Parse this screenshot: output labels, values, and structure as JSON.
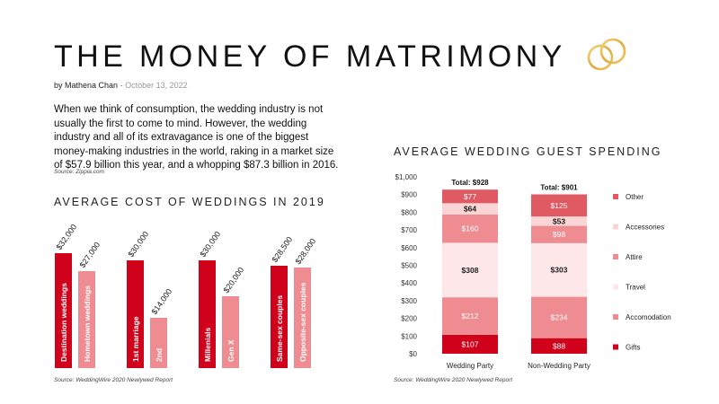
{
  "page": {
    "title": "THE MONEY OF MATRIMONY",
    "author": "by Mathena Chan",
    "separator": "·",
    "date": "October 13, 2022",
    "intro": "When we think of consumption, the wedding industry is not usually the first to come to mind. However, the wedding industry and all of its extravagance is one of the biggest money-making industries in the world, raking in a market size of $57.9 billion this year, and a whopping $87.3 billion in 2016.",
    "intro_source": "Source: Zippia.com",
    "icon": "wedding-rings-icon"
  },
  "colors": {
    "dark_red": "#d0021b",
    "light_red": "#ee8c92",
    "pale_red": "#fbd4d6",
    "very_pale_red": "#fde7e8",
    "gold": "#e8b94a"
  },
  "chart_data": [
    {
      "type": "bar",
      "title": "AVERAGE COST OF WEDDINGS IN 2019",
      "source": "Source: WeddingWire 2020 Newlywed Report",
      "groups": [
        {
          "bars": [
            {
              "label": "Destination weddings",
              "value": 32000,
              "value_label": "$32,000",
              "color": "#d0021b"
            },
            {
              "label": "Hometown weddings",
              "value": 27000,
              "value_label": "$27,000",
              "color": "#ee8c92"
            }
          ]
        },
        {
          "bars": [
            {
              "label": "1st marriage",
              "value": 30000,
              "value_label": "$30,000",
              "color": "#d0021b"
            },
            {
              "label": "2nd",
              "value": 14000,
              "value_label": "$14,000",
              "color": "#ee8c92"
            }
          ]
        },
        {
          "bars": [
            {
              "label": "Millenials",
              "value": 30000,
              "value_label": "$30,000",
              "color": "#d0021b"
            },
            {
              "label": "Gen X",
              "value": 20000,
              "value_label": "$20,000",
              "color": "#ee8c92"
            }
          ]
        },
        {
          "bars": [
            {
              "label": "Same-sex couples",
              "value": 28500,
              "value_label": "$28,500",
              "color": "#d0021b"
            },
            {
              "label": "Opposite-sex couples",
              "value": 28000,
              "value_label": "$28,000",
              "color": "#ee8c92"
            }
          ]
        }
      ],
      "ylim": [
        0,
        40000
      ],
      "grid": false
    },
    {
      "type": "bar",
      "stacked": true,
      "title": "AVERAGE WEDDING GUEST SPENDING",
      "source": "Source: WeddingWire 2020 Newlywed Report",
      "categories": [
        "Wedding Party",
        "Non-Wedding Party"
      ],
      "totals": [
        928,
        901
      ],
      "total_labels": [
        "Total: $928",
        "Total: $901"
      ],
      "series": [
        {
          "name": "Gifts",
          "values": [
            107,
            88
          ],
          "value_labels": [
            "$107",
            "$88"
          ],
          "color": "#d0021b"
        },
        {
          "name": "Accomodation",
          "values": [
            212,
            234
          ],
          "value_labels": [
            "$212",
            "$234"
          ],
          "color": "#ee8c92"
        },
        {
          "name": "Travel",
          "values": [
            308,
            303
          ],
          "value_labels": [
            "$308",
            "$303"
          ],
          "color": "#fde7e8"
        },
        {
          "name": "Attire",
          "values": [
            160,
            98
          ],
          "value_labels": [
            "$160",
            "$98"
          ],
          "color": "#ee8c92"
        },
        {
          "name": "Accessories",
          "values": [
            64,
            53
          ],
          "value_labels": [
            "$64",
            "$53"
          ],
          "color": "#fbd4d6"
        },
        {
          "name": "Other",
          "values": [
            77,
            125
          ],
          "value_labels": [
            "$77",
            "$125"
          ],
          "color": "#e05a63"
        }
      ],
      "ylim": [
        0,
        1000
      ],
      "yticks": [
        0,
        100,
        200,
        300,
        400,
        500,
        600,
        700,
        800,
        900,
        1000
      ],
      "ytick_labels": [
        "$0",
        "$100",
        "$200",
        "$300",
        "$400",
        "$500",
        "$600",
        "$700",
        "$800",
        "$900",
        "$1,000"
      ],
      "legend": "right",
      "grid": false
    }
  ]
}
